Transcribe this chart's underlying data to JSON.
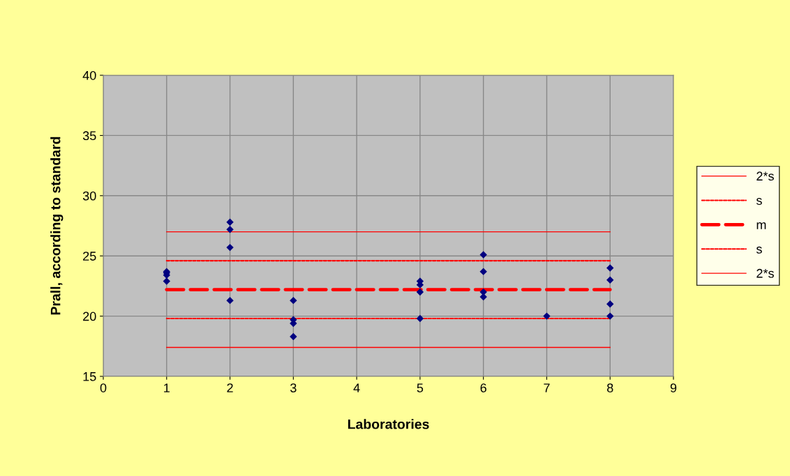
{
  "chart_data": {
    "type": "scatter",
    "xlabel": "Laboratories",
    "ylabel": "Prall, according to standard",
    "xlim": [
      0,
      9
    ],
    "xticks": [
      0,
      1,
      2,
      3,
      4,
      5,
      6,
      7,
      8,
      9
    ],
    "ylim": [
      15,
      40
    ],
    "yticks": [
      15,
      20,
      25,
      30,
      35,
      40
    ],
    "grid": true,
    "legend": "right",
    "marker": "diamond",
    "series": [
      {
        "color": "#000080",
        "x": [
          1,
          1,
          1,
          1,
          2,
          2,
          2,
          2,
          3,
          3,
          3,
          3,
          5,
          5,
          5,
          5,
          6,
          6,
          6,
          6,
          7,
          8,
          8,
          8,
          8
        ],
        "values": [
          23.7,
          23.6,
          23.4,
          22.9,
          27.8,
          27.2,
          25.7,
          21.3,
          21.3,
          19.7,
          19.4,
          18.3,
          22.9,
          22.6,
          22.0,
          19.8,
          25.1,
          23.7,
          22.0,
          21.6,
          20.0,
          24.0,
          23.0,
          21.0,
          20.0
        ]
      },
      {
        "type": "line",
        "name": "2*s",
        "color": "#ff0000",
        "line_style": "solid",
        "marker": "none",
        "x": [
          1,
          8
        ],
        "values": [
          27.0,
          27.0
        ]
      },
      {
        "type": "line",
        "name": "s",
        "color": "#ff0000",
        "line_style": "dotted",
        "marker": "none",
        "x": [
          1,
          8
        ],
        "values": [
          24.6,
          24.6
        ]
      },
      {
        "type": "line",
        "name": "m",
        "color": "#ff0000",
        "line_style": "dashed",
        "marker": "none",
        "x": [
          1,
          8
        ],
        "values": [
          22.2,
          22.2
        ]
      },
      {
        "type": "line",
        "name": "s",
        "color": "#ff0000",
        "line_style": "dotted",
        "marker": "none",
        "x": [
          1,
          8
        ],
        "values": [
          19.8,
          19.8
        ]
      },
      {
        "type": "line",
        "name": "2*s",
        "color": "#ff0000",
        "line_style": "solid",
        "marker": "none",
        "x": [
          1,
          8
        ],
        "values": [
          17.4,
          17.4
        ]
      }
    ]
  }
}
